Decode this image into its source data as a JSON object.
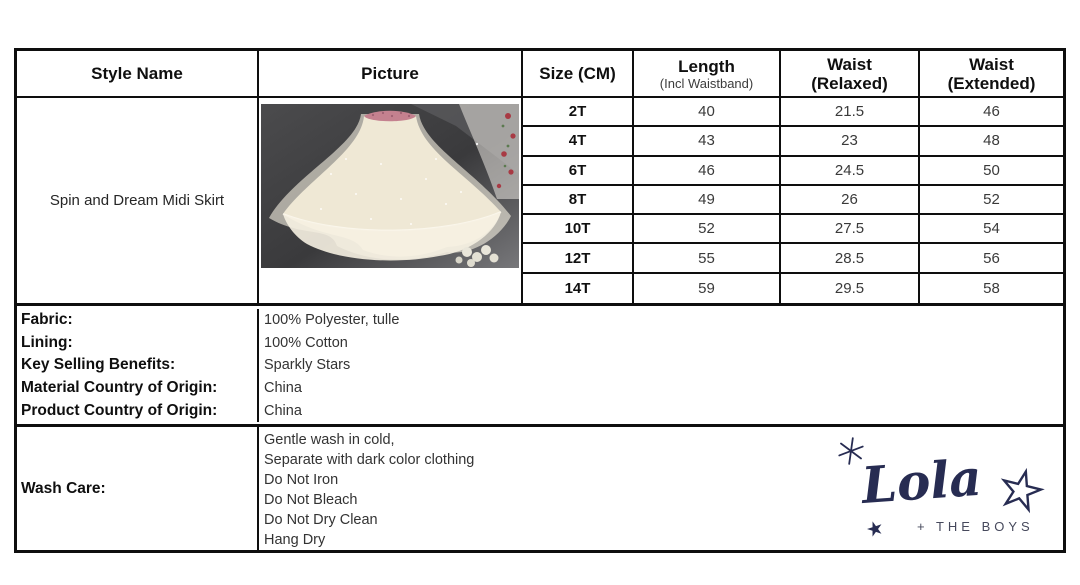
{
  "header": {
    "style_name": "Style Name",
    "picture": "Picture",
    "size": "Size (CM)",
    "length": "Length",
    "length_sub": "(Incl Waistband)",
    "waist_relaxed_1": "Waist",
    "waist_relaxed_2": "(Relaxed)",
    "waist_extended_1": "Waist",
    "waist_extended_2": "(Extended)"
  },
  "product": {
    "style_name": "Spin and Dream Midi Skirt"
  },
  "size_chart": {
    "rows": [
      {
        "size": "2T",
        "length": "40",
        "waist_relaxed": "21.5",
        "waist_extended": "46"
      },
      {
        "size": "4T",
        "length": "43",
        "waist_relaxed": "23",
        "waist_extended": "48"
      },
      {
        "size": "6T",
        "length": "46",
        "waist_relaxed": "24.5",
        "waist_extended": "50"
      },
      {
        "size": "8T",
        "length": "49",
        "waist_relaxed": "26",
        "waist_extended": "52"
      },
      {
        "size": "10T",
        "length": "52",
        "waist_relaxed": "27.5",
        "waist_extended": "54"
      },
      {
        "size": "12T",
        "length": "55",
        "waist_relaxed": "28.5",
        "waist_extended": "56"
      },
      {
        "size": "14T",
        "length": "59",
        "waist_relaxed": "29.5",
        "waist_extended": "58"
      }
    ]
  },
  "details": [
    {
      "label": "Fabric:",
      "value": "100% Polyester, tulle"
    },
    {
      "label": "Lining:",
      "value": "100% Cotton"
    },
    {
      "label": "Key Selling Benefits:",
      "value": "Sparkly Stars"
    },
    {
      "label": "Material Country of Origin:",
      "value": "China"
    },
    {
      "label": "Product Country of Origin:",
      "value": "China"
    }
  ],
  "wash_care": {
    "label": "Wash Care:",
    "instructions": [
      "Gentle wash in cold,",
      "Separate with dark color clothing",
      "Do Not Iron",
      "Do Not Bleach",
      "Do Not Dry Clean",
      "Hang Dry"
    ]
  },
  "brand": {
    "wordmark": "Lola",
    "tagline": "+ THE BOYS",
    "color": "#272c52",
    "tagline_color": "#46495c"
  }
}
